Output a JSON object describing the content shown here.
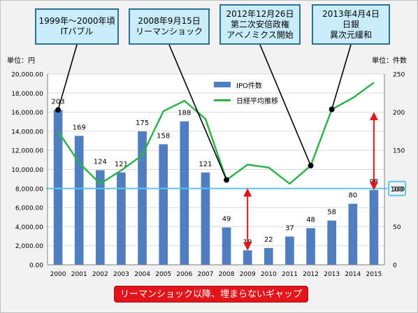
{
  "chart_data": {
    "type": "bar",
    "categories": [
      "2000",
      "2001",
      "2002",
      "2003",
      "2004",
      "2005",
      "2006",
      "2007",
      "2008",
      "2009",
      "2010",
      "2011",
      "2012",
      "2013",
      "2014",
      "2015"
    ],
    "series": [
      {
        "name": "IPO件数",
        "type": "bar",
        "axis": "right",
        "color": "#4f7fc0",
        "values": [
          203,
          169,
          124,
          121,
          175,
          158,
          188,
          121,
          49,
          19,
          22,
          37,
          48,
          58,
          80,
          98
        ]
      },
      {
        "name": "日経平均推移",
        "type": "line",
        "axis": "left",
        "color": "#2db34a",
        "values": [
          14000,
          10700,
          8500,
          9900,
          11500,
          16100,
          17200,
          15300,
          8900,
          10500,
          10200,
          8500,
          10400,
          16300,
          17500,
          19100
        ]
      }
    ],
    "bar_labels": [
      "203",
      "169",
      "124",
      "121",
      "175",
      "158",
      "188",
      "121",
      "49",
      "19",
      "22",
      "37",
      "48",
      "58",
      "80",
      "98"
    ],
    "left_axis": {
      "min": 0,
      "max": 20000,
      "ticks": [
        "0.00",
        "2,000.00",
        "4,000.00",
        "6,000.00",
        "8,000.00",
        "10,000.00",
        "12,000.00",
        "14,000.00",
        "16,000.00",
        "18,000.00",
        "20,000.00"
      ],
      "unit_label": "単位：円"
    },
    "right_axis": {
      "min": 0,
      "max": 250,
      "ticks": [
        "0",
        "50",
        "100",
        "150",
        "200",
        "250"
      ],
      "unit_label": "単位：件数"
    },
    "reference_value": 100,
    "reference_label": "100",
    "reference_color": "#5bc6f0",
    "arrow_color": "#e3151a",
    "arrows": [
      {
        "category": "2009",
        "from": 19,
        "to": 100
      },
      {
        "category": "2015",
        "from": 98,
        "to": 200
      }
    ],
    "events": [
      {
        "category": "2000",
        "series": "IPO件数",
        "lines": [
          "1999年～2000年頃",
          "ITバブル"
        ]
      },
      {
        "category": "2008",
        "series": "日経平均推移",
        "lines": [
          "2008年9月15日",
          "リーマンショック"
        ]
      },
      {
        "category": "2012",
        "series": "日経平均推移",
        "lines": [
          "2012年12月26日",
          "第二次安倍政権",
          "アベノミクス開始"
        ]
      },
      {
        "category": "2013",
        "series": "日経平均推移",
        "lines": [
          "2013年4月4日",
          "日銀",
          "異次元緩和"
        ]
      }
    ],
    "grid": true,
    "legend_position": "top-center"
  },
  "banner_text": "リーマンショック以降、埋まらないギャップ"
}
